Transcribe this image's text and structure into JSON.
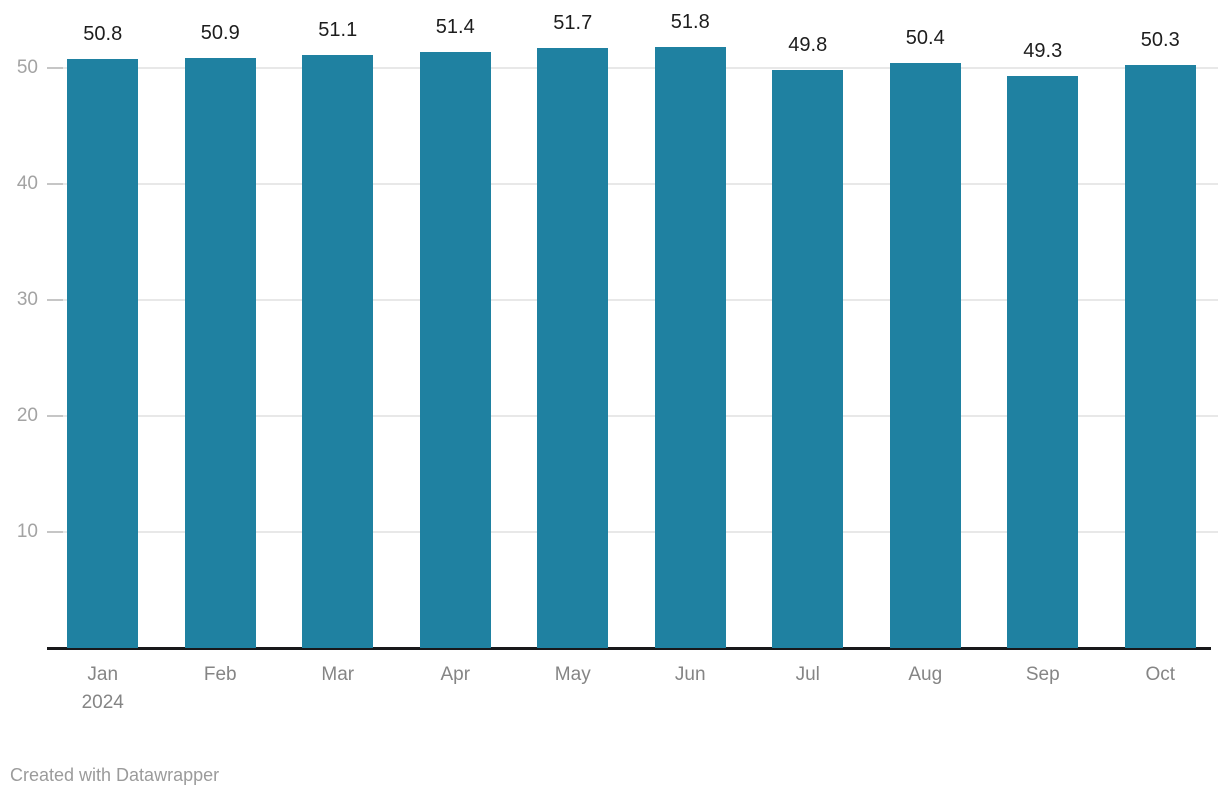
{
  "chart_data": {
    "type": "bar",
    "categories": [
      "Jan",
      "Feb",
      "Mar",
      "Apr",
      "May",
      "Jun",
      "Jul",
      "Aug",
      "Sep",
      "Oct"
    ],
    "category_sublabels": [
      "2024",
      "",
      "",
      "",
      "",
      "",
      "",
      "",
      "",
      ""
    ],
    "values": [
      50.8,
      50.9,
      51.1,
      51.4,
      51.7,
      51.8,
      49.8,
      50.4,
      49.3,
      50.3
    ],
    "value_labels": [
      "50.8",
      "50.9",
      "51.1",
      "51.4",
      "51.7",
      "51.8",
      "49.8",
      "50.4",
      "49.3",
      "50.3"
    ],
    "y_ticks": [
      10,
      20,
      30,
      40,
      50
    ],
    "ylim": [
      0,
      55.9
    ],
    "grid": true,
    "legend": "none",
    "title": "",
    "xlabel": "",
    "ylabel": ""
  },
  "colors": {
    "bar": "#1f81a1",
    "grid": "#e8e8e8",
    "tick_dash": "#c6c6c6",
    "axis_line": "#18181b",
    "value_label": "#1d1d1d",
    "y_label": "#a3a3a3",
    "x_label": "#858585",
    "credit": "#9b9b9b"
  },
  "footer": {
    "credit": "Created with Datawrapper"
  }
}
